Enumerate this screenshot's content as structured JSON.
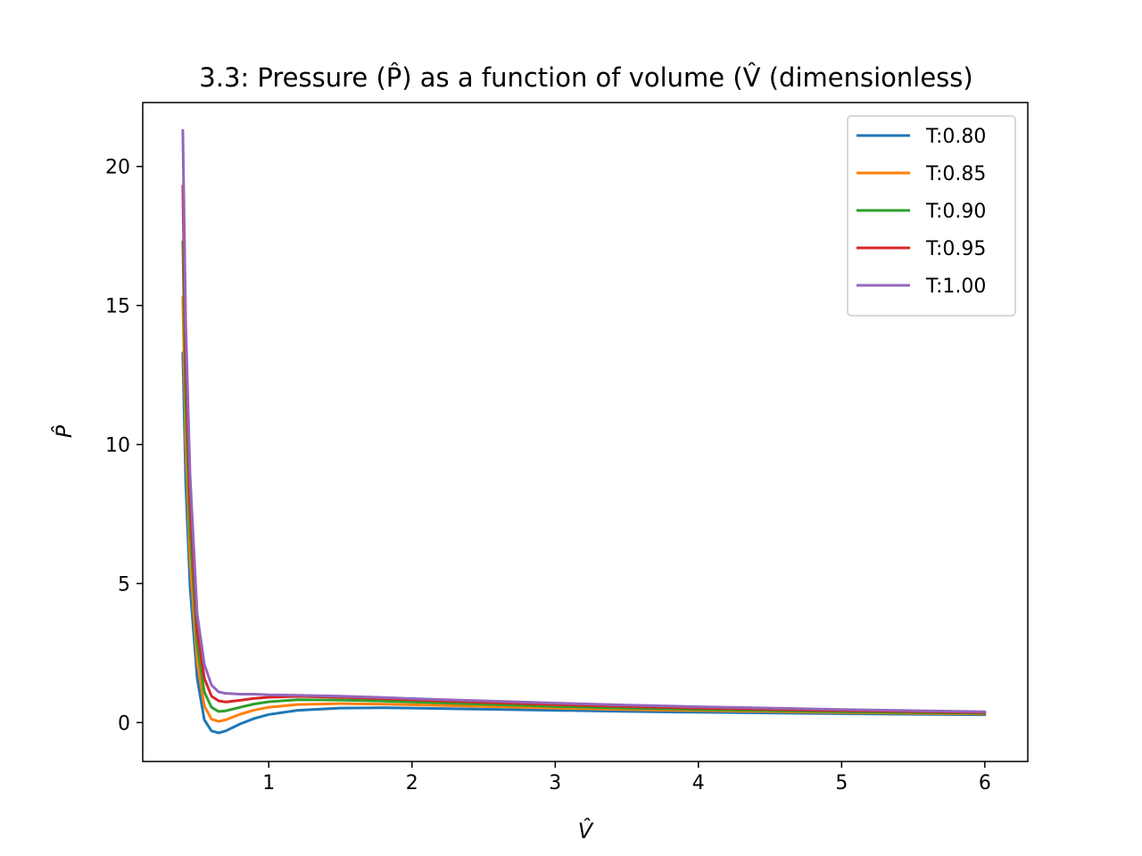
{
  "chart_data": {
    "type": "line",
    "title": "3.3: Pressure (P̂) as a function of volume (V̂ (dimensionless)",
    "xlabel": "V̂",
    "ylabel": "P̂",
    "xlim": [
      0.12,
      6.3
    ],
    "ylim": [
      -1.4,
      22.3
    ],
    "xticks": [
      1,
      2,
      3,
      4,
      5,
      6
    ],
    "yticks": [
      0,
      5,
      10,
      15,
      20
    ],
    "grid": false,
    "legend_position": "top-right",
    "x": [
      0.4,
      0.42,
      0.45,
      0.5,
      0.55,
      0.6,
      0.65,
      0.7,
      0.8,
      0.9,
      1.0,
      1.2,
      1.5,
      1.8,
      2.0,
      2.5,
      3.0,
      3.5,
      4.0,
      5.0,
      6.0
    ],
    "series": [
      {
        "name": "T:0.80",
        "color": "#1f77b4",
        "values": [
          13.3,
          8.6,
          4.9,
          1.6,
          0.1,
          -0.3,
          -0.37,
          -0.3,
          -0.05,
          0.15,
          0.29,
          0.44,
          0.52,
          0.53,
          0.52,
          0.48,
          0.44,
          0.4,
          0.37,
          0.32,
          0.28
        ]
      },
      {
        "name": "T:0.85",
        "color": "#ff7f0e",
        "values": [
          15.3,
          10.1,
          5.9,
          2.2,
          0.6,
          0.12,
          0.04,
          0.1,
          0.3,
          0.45,
          0.55,
          0.65,
          0.68,
          0.66,
          0.64,
          0.58,
          0.52,
          0.47,
          0.43,
          0.36,
          0.31
        ]
      },
      {
        "name": "T:0.90",
        "color": "#2ca02c",
        "values": [
          17.3,
          11.5,
          6.9,
          2.8,
          1.1,
          0.55,
          0.4,
          0.42,
          0.55,
          0.67,
          0.75,
          0.82,
          0.81,
          0.77,
          0.74,
          0.66,
          0.58,
          0.52,
          0.47,
          0.39,
          0.33
        ]
      },
      {
        "name": "T:0.95",
        "color": "#d62728",
        "values": [
          19.3,
          12.9,
          7.9,
          3.3,
          1.6,
          0.95,
          0.78,
          0.74,
          0.8,
          0.87,
          0.91,
          0.94,
          0.91,
          0.86,
          0.82,
          0.73,
          0.65,
          0.58,
          0.52,
          0.43,
          0.36
        ]
      },
      {
        "name": "T:1.00",
        "color": "#9467bd",
        "values": [
          21.3,
          14.3,
          8.9,
          3.9,
          2.1,
          1.35,
          1.1,
          1.05,
          1.02,
          1.02,
          1.0,
          0.98,
          0.95,
          0.9,
          0.86,
          0.78,
          0.7,
          0.63,
          0.57,
          0.47,
          0.39
        ]
      }
    ]
  }
}
